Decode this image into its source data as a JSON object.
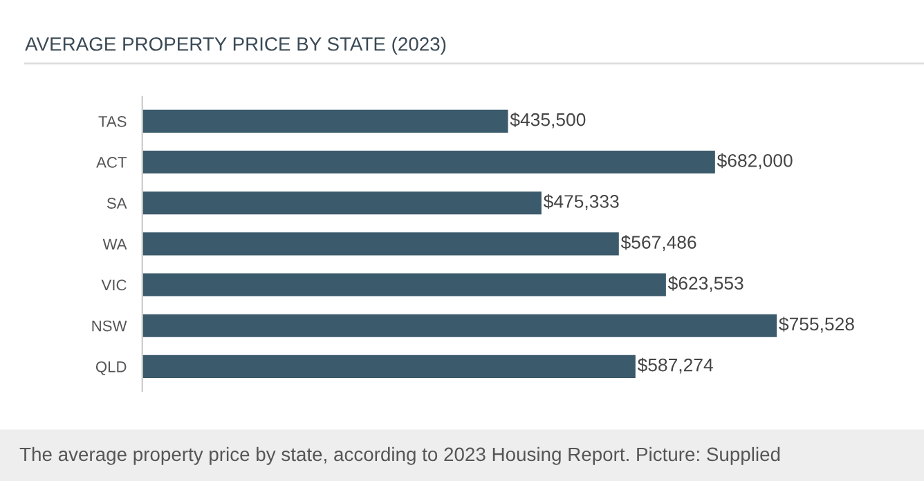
{
  "chart_data": {
    "type": "bar",
    "orientation": "horizontal",
    "title": "AVERAGE PROPERTY PRICE BY STATE (2023)",
    "categories": [
      "TAS",
      "ACT",
      "SA",
      "WA",
      "VIC",
      "NSW",
      "QLD"
    ],
    "values": [
      435500,
      682000,
      475333,
      567486,
      623553,
      755528,
      587274
    ],
    "value_labels": [
      "$435,500",
      "$682,000",
      "$475,333",
      "$567,486",
      "$623,553",
      "$755,528",
      "$587,274"
    ],
    "color": "#3b5a6b",
    "tick_labels": "y",
    "grid": false,
    "legend": false,
    "annotations": [
      "The average property price by state, according to 2023 Housing Report. Picture: Supplied"
    ]
  }
}
